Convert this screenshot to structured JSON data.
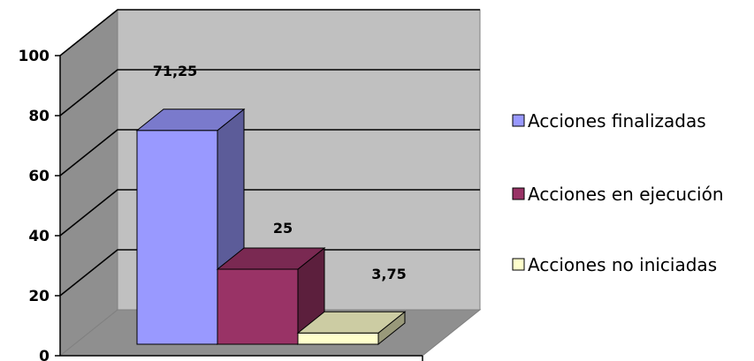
{
  "chart_data": {
    "type": "bar",
    "title": "",
    "xlabel": "",
    "ylabel": "",
    "ylim": [
      0,
      100
    ],
    "yticks": [
      0,
      20,
      40,
      60,
      80,
      100
    ],
    "ytick_labels": [
      "0",
      "20",
      "40",
      "60",
      "80",
      "100"
    ],
    "grid": true,
    "three_d": true,
    "legend_position": "right",
    "series": [
      {
        "name": "Acciones finalizadas",
        "value": 71.25,
        "label": "71,25",
        "color": "#9999ff"
      },
      {
        "name": "Acciones en ejecución",
        "value": 25,
        "label": "25",
        "color": "#993366"
      },
      {
        "name": "Acciones no iniciadas",
        "value": 3.75,
        "label": "3,75",
        "color": "#ffffcc"
      }
    ]
  }
}
